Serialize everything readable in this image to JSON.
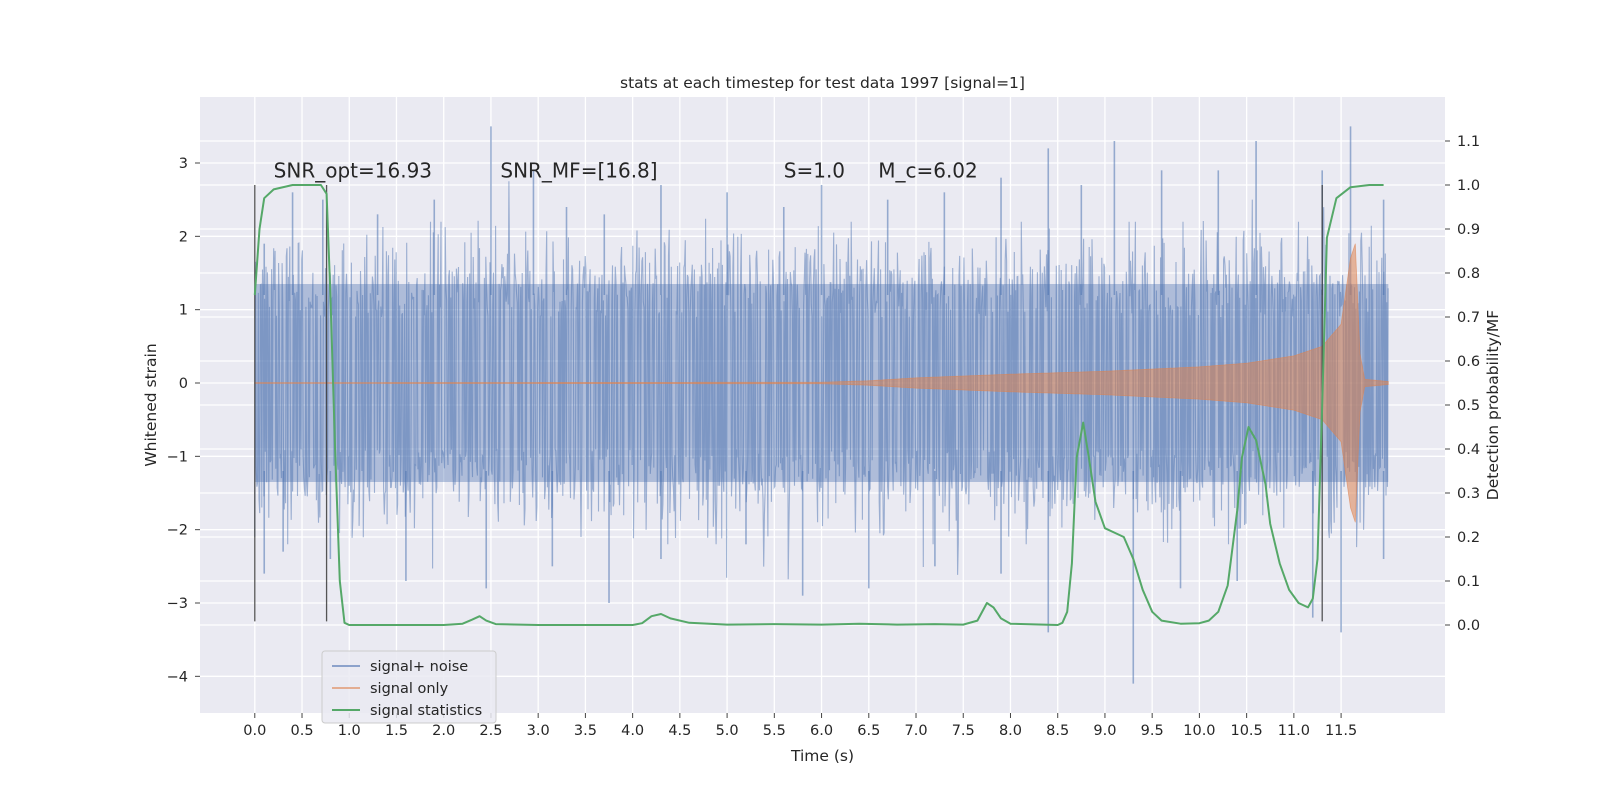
{
  "chart_data": {
    "type": "line",
    "title": "stats at each timestep for test data 1997 [signal=1]",
    "xlabel": "Time (s)",
    "ylabel": "Whitened strain",
    "ylabel_right": "Detection probability/MF",
    "xlim": [
      -0.58,
      12.6
    ],
    "ylim": [
      -4.5,
      3.9
    ],
    "ylim_right": [
      -0.2,
      1.2
    ],
    "x_ticks": [
      "0.0",
      "0.5",
      "1.0",
      "1.5",
      "2.0",
      "2.5",
      "3.0",
      "3.5",
      "4.0",
      "4.5",
      "5.0",
      "5.5",
      "6.0",
      "6.5",
      "7.0",
      "7.5",
      "8.0",
      "8.5",
      "9.0",
      "9.5",
      "10.0",
      "10.5",
      "11.0",
      "11.5"
    ],
    "y_ticks": [
      "3",
      "2",
      "1",
      "0",
      "−1",
      "−2",
      "−3",
      "−4"
    ],
    "y_ticks_right": [
      "1.1",
      "1.0",
      "0.9",
      "0.8",
      "0.7",
      "0.6",
      "0.5",
      "0.4",
      "0.3",
      "0.2",
      "0.1",
      "0.0"
    ],
    "grid": true,
    "legend_position": "lower-left",
    "annotations": [
      {
        "name": "snr-opt",
        "text": "SNR_opt=16.93",
        "x": 0.2,
        "y": 2.8
      },
      {
        "name": "snr-mf",
        "text": "SNR_MF=[16.8]",
        "x": 2.6,
        "y": 2.8
      },
      {
        "name": "s-value",
        "text": "S=1.0",
        "x": 5.6,
        "y": 2.8
      },
      {
        "name": "chirp-mass",
        "text": "M_c=6.02",
        "x": 6.6,
        "y": 2.8
      }
    ],
    "vertical_markers": [
      {
        "x": 0.0,
        "y_range": [
          -3.25,
          2.7
        ]
      },
      {
        "x": 0.76,
        "y_range": [
          -3.25,
          2.7
        ]
      },
      {
        "x": 11.3,
        "y_range": [
          -3.25,
          2.7
        ]
      }
    ],
    "series": [
      {
        "name": "signal+ noise",
        "color": "#4c72b0",
        "kind": "noise-band",
        "x_range": [
          0.0,
          12.0
        ],
        "body_amplitude": 1.35,
        "peaks_up": [
          [
            0.1,
            1.9
          ],
          [
            0.4,
            2.6
          ],
          [
            0.72,
            2.5
          ],
          [
            1.3,
            2.3
          ],
          [
            1.9,
            2.5
          ],
          [
            2.5,
            3.5
          ],
          [
            2.95,
            2.9
          ],
          [
            3.3,
            2.4
          ],
          [
            3.7,
            2.3
          ],
          [
            4.3,
            2.7
          ],
          [
            5.0,
            2.6
          ],
          [
            5.6,
            2.4
          ],
          [
            6.0,
            2.7
          ],
          [
            6.7,
            2.5
          ],
          [
            7.3,
            2.6
          ],
          [
            7.9,
            2.8
          ],
          [
            8.4,
            3.2
          ],
          [
            8.75,
            2.7
          ],
          [
            9.1,
            3.3
          ],
          [
            9.6,
            2.9
          ],
          [
            10.2,
            2.9
          ],
          [
            10.6,
            3.3
          ],
          [
            11.3,
            2.9
          ],
          [
            11.6,
            3.5
          ],
          [
            11.95,
            2.5
          ]
        ],
        "peaks_down": [
          [
            0.1,
            -2.6
          ],
          [
            0.3,
            -2.3
          ],
          [
            0.8,
            -2.4
          ],
          [
            1.6,
            -2.7
          ],
          [
            2.45,
            -2.8
          ],
          [
            3.15,
            -2.5
          ],
          [
            3.75,
            -3.0
          ],
          [
            4.3,
            -2.4
          ],
          [
            5.2,
            -2.2
          ],
          [
            5.8,
            -2.9
          ],
          [
            6.5,
            -2.8
          ],
          [
            7.2,
            -2.5
          ],
          [
            7.9,
            -2.6
          ],
          [
            8.4,
            -3.4
          ],
          [
            9.3,
            -4.1
          ],
          [
            9.8,
            -2.8
          ],
          [
            10.4,
            -2.7
          ],
          [
            11.2,
            -3.2
          ],
          [
            11.5,
            -3.4
          ],
          [
            11.95,
            -2.4
          ]
        ]
      },
      {
        "name": "signal only",
        "color": "#dd8452",
        "kind": "chirp",
        "x_range": [
          0.0,
          12.0
        ],
        "envelope": [
          [
            0,
            0.005
          ],
          [
            6.0,
            0.01
          ],
          [
            6.5,
            0.03
          ],
          [
            7.0,
            0.07
          ],
          [
            8.0,
            0.12
          ],
          [
            9.0,
            0.16
          ],
          [
            10.0,
            0.22
          ],
          [
            10.5,
            0.27
          ],
          [
            11.0,
            0.37
          ],
          [
            11.3,
            0.5
          ],
          [
            11.5,
            0.8
          ],
          [
            11.6,
            1.7
          ],
          [
            11.65,
            1.9
          ],
          [
            11.7,
            0.4
          ],
          [
            11.75,
            0.05
          ],
          [
            12.0,
            0.02
          ]
        ]
      },
      {
        "name": "signal statistics",
        "color": "#55a868",
        "kind": "line",
        "axis": "right",
        "points": [
          [
            0,
            0.75
          ],
          [
            0.05,
            0.9
          ],
          [
            0.1,
            0.97
          ],
          [
            0.2,
            0.99
          ],
          [
            0.4,
            1.0
          ],
          [
            0.7,
            1.0
          ],
          [
            0.76,
            0.98
          ],
          [
            0.8,
            0.75
          ],
          [
            0.85,
            0.4
          ],
          [
            0.9,
            0.1
          ],
          [
            0.95,
            0.005
          ],
          [
            1.0,
            0.0
          ],
          [
            1.5,
            0.0
          ],
          [
            2.0,
            0.0
          ],
          [
            2.2,
            0.003
          ],
          [
            2.3,
            0.012
          ],
          [
            2.38,
            0.02
          ],
          [
            2.45,
            0.01
          ],
          [
            2.55,
            0.002
          ],
          [
            3.0,
            0.0
          ],
          [
            4.0,
            0.0
          ],
          [
            4.1,
            0.004
          ],
          [
            4.2,
            0.02
          ],
          [
            4.3,
            0.025
          ],
          [
            4.4,
            0.015
          ],
          [
            4.6,
            0.005
          ],
          [
            5.0,
            0.001
          ],
          [
            5.5,
            0.002
          ],
          [
            6.0,
            0.001
          ],
          [
            6.4,
            0.003
          ],
          [
            6.8,
            0.001
          ],
          [
            7.2,
            0.002
          ],
          [
            7.5,
            0.001
          ],
          [
            7.65,
            0.01
          ],
          [
            7.75,
            0.05
          ],
          [
            7.82,
            0.04
          ],
          [
            7.9,
            0.015
          ],
          [
            8.0,
            0.003
          ],
          [
            8.5,
            0.0
          ],
          [
            8.55,
            0.005
          ],
          [
            8.6,
            0.03
          ],
          [
            8.65,
            0.14
          ],
          [
            8.7,
            0.38
          ],
          [
            8.77,
            0.46
          ],
          [
            8.83,
            0.38
          ],
          [
            8.9,
            0.28
          ],
          [
            9.0,
            0.22
          ],
          [
            9.1,
            0.21
          ],
          [
            9.2,
            0.2
          ],
          [
            9.3,
            0.15
          ],
          [
            9.4,
            0.08
          ],
          [
            9.5,
            0.03
          ],
          [
            9.6,
            0.01
          ],
          [
            9.8,
            0.003
          ],
          [
            10.0,
            0.004
          ],
          [
            10.1,
            0.01
          ],
          [
            10.2,
            0.03
          ],
          [
            10.3,
            0.09
          ],
          [
            10.4,
            0.26
          ],
          [
            10.45,
            0.38
          ],
          [
            10.52,
            0.45
          ],
          [
            10.6,
            0.42
          ],
          [
            10.7,
            0.32
          ],
          [
            10.75,
            0.23
          ],
          [
            10.85,
            0.14
          ],
          [
            10.95,
            0.08
          ],
          [
            11.05,
            0.05
          ],
          [
            11.15,
            0.04
          ],
          [
            11.2,
            0.06
          ],
          [
            11.25,
            0.15
          ],
          [
            11.3,
            0.5
          ],
          [
            11.35,
            0.88
          ],
          [
            11.45,
            0.97
          ],
          [
            11.6,
            0.995
          ],
          [
            11.8,
            1.0
          ],
          [
            11.95,
            1.0
          ]
        ]
      }
    ]
  }
}
